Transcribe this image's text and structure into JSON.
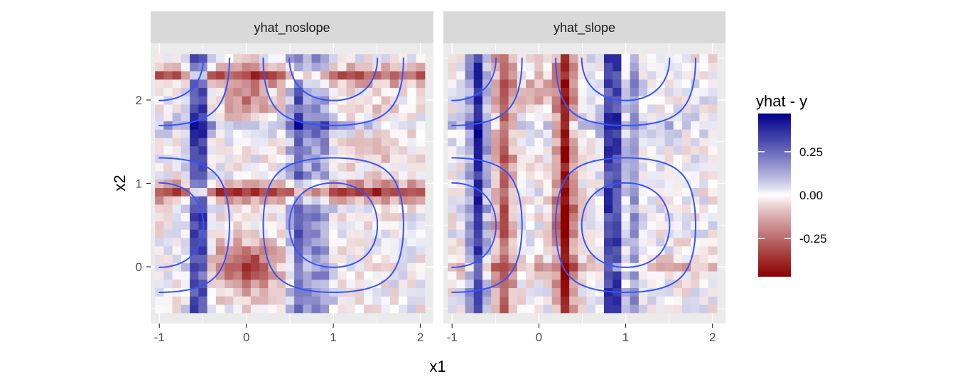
{
  "chart_data": {
    "type": "heatmap",
    "facet_variable_values": [
      "yhat_noslope",
      "yhat_slope"
    ],
    "xlabel": "x1",
    "ylabel": "x2",
    "xlim": [
      -1.1,
      2.15
    ],
    "ylim": [
      -0.68,
      2.68
    ],
    "x_ticks": [
      -1,
      0,
      1,
      2
    ],
    "y_ticks": [
      0,
      1,
      2
    ],
    "x_tick_labels": [
      "-1",
      "0",
      "1",
      "2"
    ],
    "y_tick_labels": [
      "0",
      "1",
      "2"
    ],
    "grid": true,
    "tile_size": 0.1,
    "x_range": [
      -1,
      2
    ],
    "y_range": [
      -0.5,
      2.5
    ],
    "legend": {
      "title": "yhat - y",
      "position": "right",
      "breaks": [
        0.25,
        0.0,
        -0.25
      ],
      "labels": [
        "0.25",
        "0.00",
        "-0.25"
      ],
      "limits": [
        -0.47,
        0.47
      ],
      "low_color": "#8b0000",
      "mid_color": "#ffffff",
      "high_color": "#00008b"
    },
    "contour_color": "#3355ff",
    "contour_function": "sin(pi*x1/2) * sin(pi*(x2+0.5)/2)",
    "contour_levels": [
      -0.7,
      -0.3,
      0.3,
      0.7
    ],
    "panels": [
      {
        "name": "yhat_noslope",
        "column_effects": [
          {
            "x": -0.55,
            "amp": 0.42,
            "width": 0.1
          },
          {
            "x": 0.6,
            "amp": 0.28,
            "width": 0.1
          },
          {
            "x": 0.85,
            "amp": 0.2,
            "width": 0.12
          }
        ],
        "row_effects": [
          {
            "y": 0.9,
            "amp": -0.34,
            "width": 0.1
          },
          {
            "y": 2.3,
            "amp": -0.25,
            "width": 0.1
          },
          {
            "y": 1.7,
            "amp": 0.12,
            "width": 0.1
          }
        ],
        "blob_effects": [
          {
            "x": 0,
            "y": 0,
            "amp": -0.34,
            "rx": 0.38,
            "ry": 0.3
          },
          {
            "x": 0,
            "y": 2.0,
            "amp": -0.2,
            "rx": 0.32,
            "ry": 0.35
          },
          {
            "x": 1.55,
            "y": 1.6,
            "amp": -0.08,
            "rx": 0.5,
            "ry": 0.5
          }
        ]
      },
      {
        "name": "yhat_slope",
        "column_effects": [
          {
            "x": -0.7,
            "amp": 0.38,
            "width": 0.1
          },
          {
            "x": -0.4,
            "amp": -0.26,
            "width": 0.12
          },
          {
            "x": 0.3,
            "amp": -0.4,
            "width": 0.1
          },
          {
            "x": 0.85,
            "amp": 0.44,
            "width": 0.09
          },
          {
            "x": 1.1,
            "amp": 0.16,
            "width": 0.08
          }
        ],
        "row_effects": [
          {
            "y": 0.0,
            "amp": -0.12,
            "width": 0.1
          },
          {
            "y": 1.7,
            "amp": 0.08,
            "width": 0.1
          }
        ],
        "blob_effects": [
          {
            "x": 0.3,
            "y": 0.6,
            "amp": -0.2,
            "rx": 0.15,
            "ry": 0.2
          },
          {
            "x": 0,
            "y": 2.1,
            "amp": -0.12,
            "rx": 0.25,
            "ry": 0.3
          }
        ]
      }
    ]
  }
}
